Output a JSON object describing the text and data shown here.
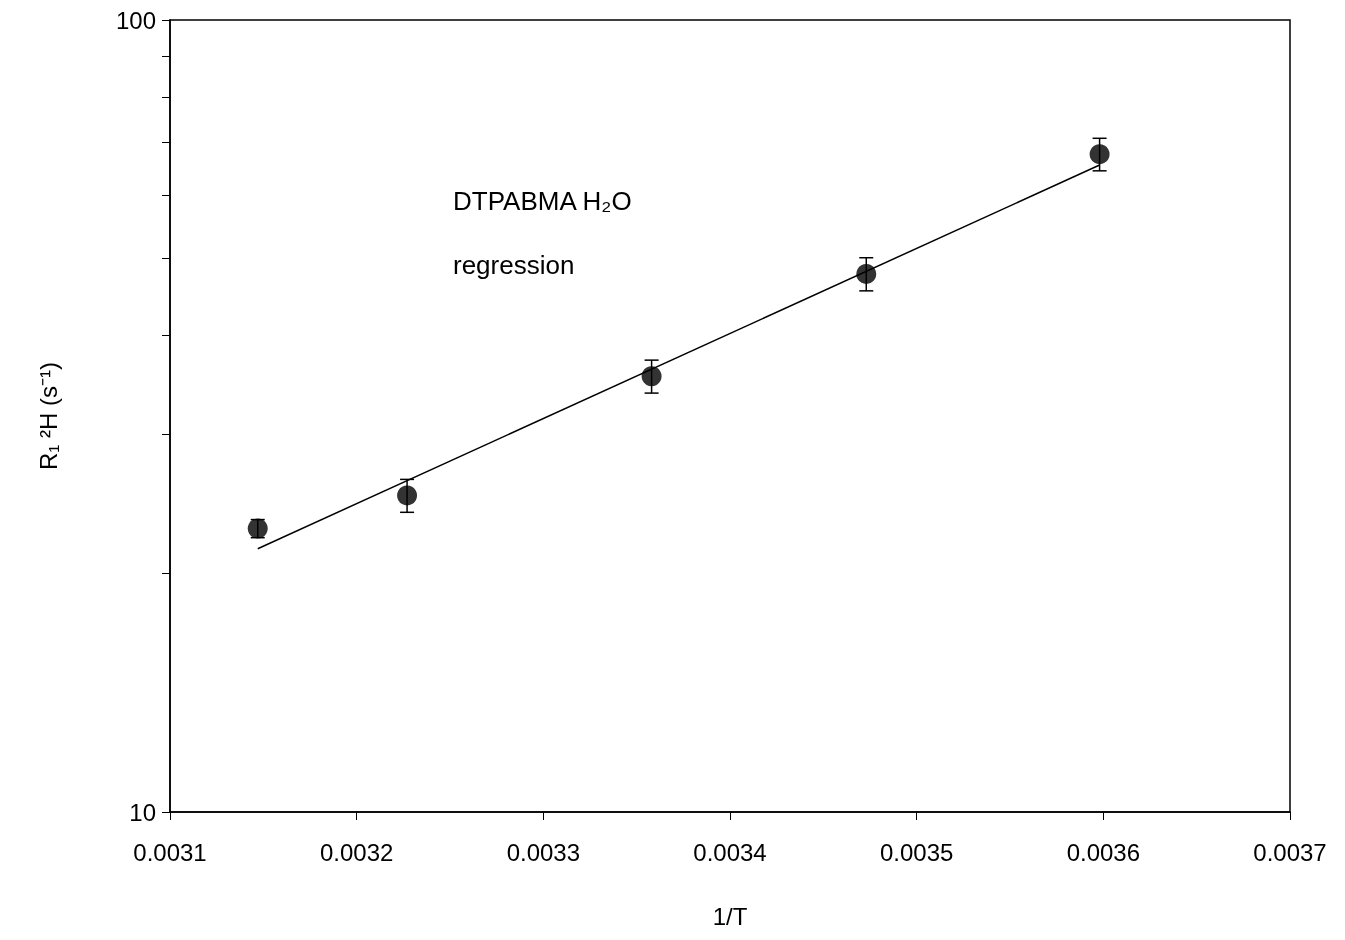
{
  "chart_data": {
    "type": "scatter",
    "xlabel": "1/T",
    "ylabel": "R₁ ²H (s⁻¹)",
    "xlim": [
      0.0031,
      0.0037
    ],
    "xticks": [
      0.0031,
      0.0032,
      0.0033,
      0.0034,
      0.0035,
      0.0036,
      0.0037
    ],
    "ylim": [
      10,
      100
    ],
    "yticks": [
      10,
      {
        "value": 20,
        "label": null
      },
      {
        "value": 30,
        "label": null
      },
      {
        "value": 40,
        "label": null
      },
      {
        "value": 50,
        "label": null
      },
      {
        "value": 60,
        "label": null
      },
      {
        "value": 70,
        "label": null
      },
      {
        "value": 80,
        "label": null
      },
      {
        "value": 90,
        "label": null
      },
      100
    ],
    "log": "y",
    "grid": false,
    "marker": "circle",
    "annotations": [
      "DTPABMA H₂O",
      "regression"
    ],
    "series": [
      {
        "color": "#000000",
        "x": [
          0.003147,
          0.003227,
          0.003358,
          0.003473,
          0.003598
        ],
        "values": [
          22.8,
          25.1,
          35.5,
          47.8,
          67.7
        ],
        "errors": [
          0.6,
          1.2,
          1.7,
          2.3,
          3.2
        ]
      },
      {
        "type": "line",
        "color": "#000000",
        "marker": "none",
        "x": [
          0.003147,
          0.003598
        ],
        "values": [
          21.5,
          65.6
        ]
      }
    ]
  }
}
